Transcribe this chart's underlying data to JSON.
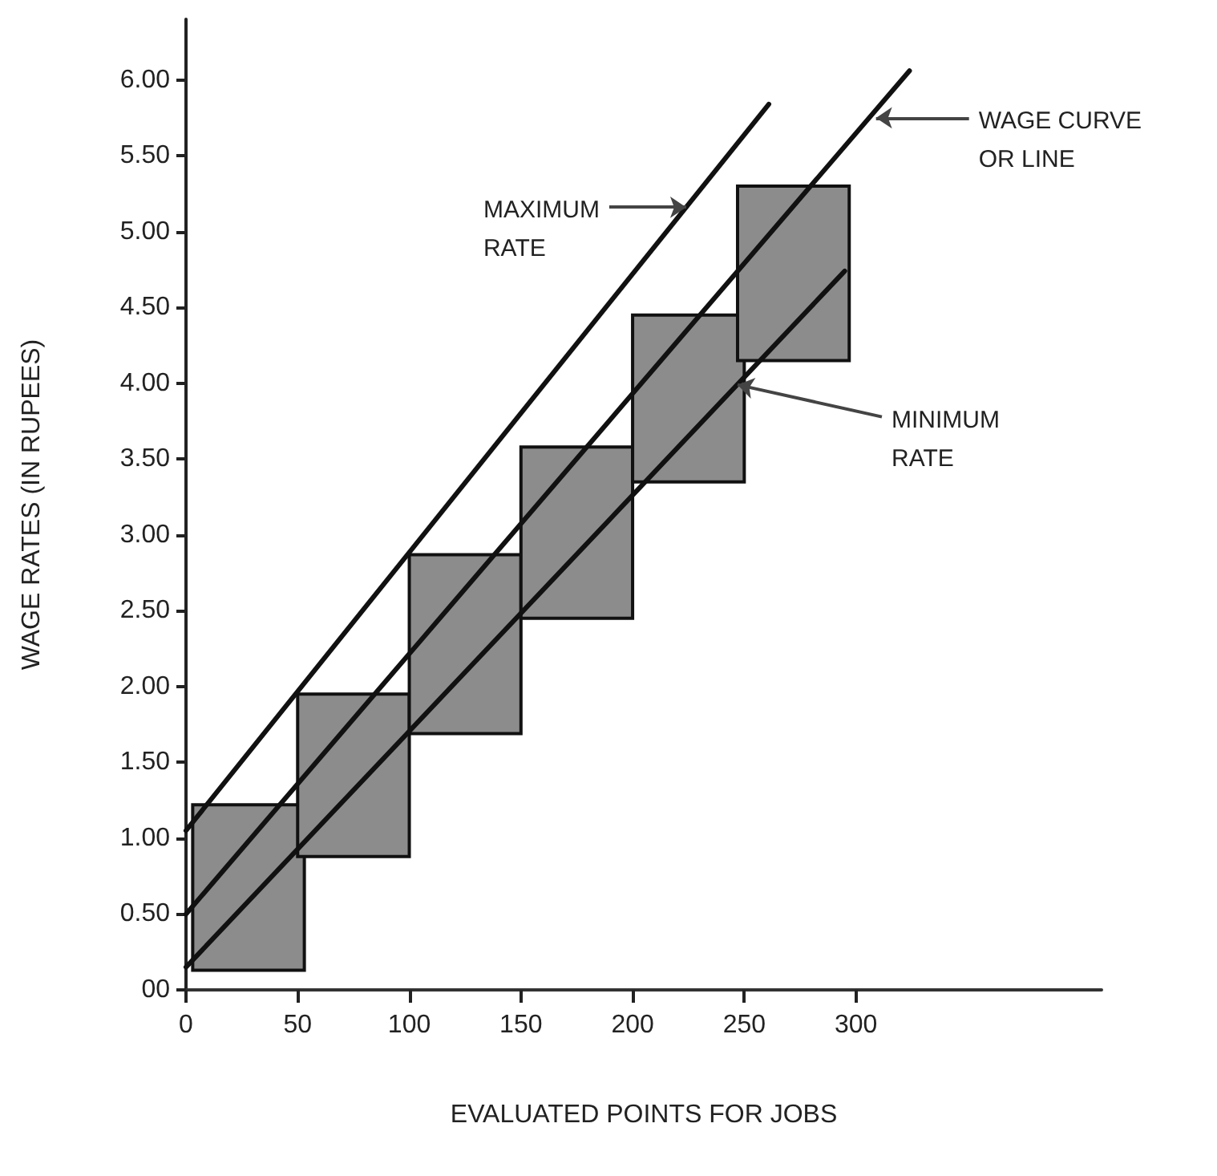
{
  "chart_data": {
    "type": "bar",
    "xlabel": "EVALUATED POINTS FOR JOBS",
    "ylabel": "WAGE RATES (IN RUPEES)",
    "xlim": [
      0,
      410
    ],
    "ylim": [
      0,
      6.4
    ],
    "xticks": [
      0,
      50,
      100,
      150,
      200,
      250,
      300
    ],
    "yticks": [
      {
        "value": 0,
        "label": "00"
      },
      {
        "value": 0.5,
        "label": "0.50"
      },
      {
        "value": 1,
        "label": "1.00"
      },
      {
        "value": 1.5,
        "label": "1.50"
      },
      {
        "value": 2,
        "label": "2.00"
      },
      {
        "value": 2.5,
        "label": "2.50"
      },
      {
        "value": 3,
        "label": "3.00"
      },
      {
        "value": 3.5,
        "label": "3.50"
      },
      {
        "value": 4,
        "label": "4.00"
      },
      {
        "value": 4.5,
        "label": "4.50"
      },
      {
        "value": 5,
        "label": "5.00"
      },
      {
        "value": 5.5,
        "label": "5.50"
      },
      {
        "value": 6,
        "label": "6.00"
      }
    ],
    "series": [
      {
        "color": "#8c8c8c",
        "x": [
          28,
          75,
          125,
          175,
          225,
          272
        ],
        "base": [
          0.13,
          0.88,
          1.69,
          2.45,
          3.35,
          4.15
        ],
        "values": [
          1.09,
          1.07,
          1.18,
          1.13,
          1.1,
          1.15
        ]
      },
      {
        "type": "line",
        "color": "#111111",
        "x": [
          0,
          261
        ],
        "values": [
          1.05,
          5.84
        ]
      },
      {
        "type": "line",
        "color": "#111111",
        "x": [
          0,
          324
        ],
        "values": [
          0.5,
          6.06
        ]
      },
      {
        "type": "line",
        "color": "#111111",
        "x": [
          0,
          295
        ],
        "values": [
          0.15,
          4.74
        ]
      }
    ],
    "annotations": [
      {
        "text": "MAXIMUM\nRATE",
        "x": 224,
        "y": 5.16
      },
      {
        "text": "WAGE CURVE\nOR LINE",
        "x": 309,
        "y": 5.75
      },
      {
        "text": "MINIMUM\nRATE",
        "x": 247,
        "y": 3.99
      }
    ]
  }
}
